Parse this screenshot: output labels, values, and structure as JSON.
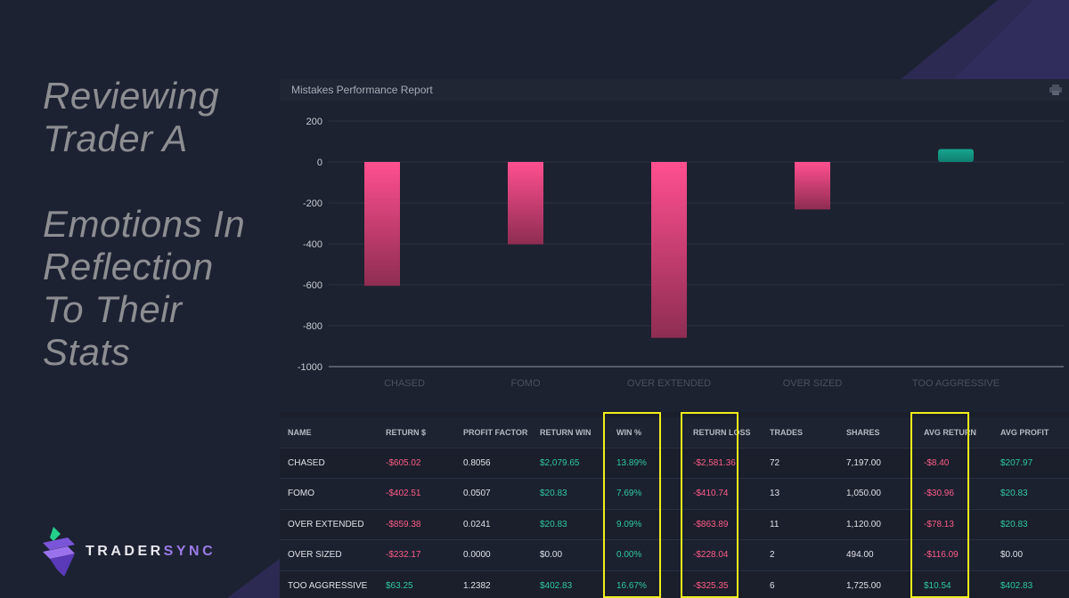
{
  "headline": {
    "lines_1": [
      "Reviewing",
      "Trader A"
    ],
    "lines_2": [
      "Emotions In",
      "Reflection",
      "To Their",
      "Stats"
    ]
  },
  "logo": {
    "text_main": "TRADER",
    "text_accent": "SYNC"
  },
  "panel": {
    "title": "Mistakes Performance Report",
    "print_icon": "printer-icon"
  },
  "colors": {
    "negative": "#ff5c87",
    "positive": "#2fc9a0",
    "bar_neg_top": "#ff4f90",
    "bar_neg_bottom": "#8e2d52",
    "bar_pos": "#17a58f",
    "highlight": "#f1ee1c",
    "accent": "#9b7be6"
  },
  "chart_data": {
    "type": "bar",
    "categories": [
      "CHASED",
      "FOMO",
      "OVER EXTENDED",
      "OVER SIZED",
      "TOO AGGRESSIVE"
    ],
    "values": [
      -605.02,
      -402.51,
      -859.38,
      -232.17,
      63.25
    ],
    "ylim": [
      -1000,
      200
    ],
    "yticks": [
      200,
      0,
      -200,
      -400,
      -600,
      -800,
      -1000
    ],
    "grid": true
  },
  "table": {
    "columns": [
      "NAME",
      "RETURN $",
      "PROFIT FACTOR",
      "RETURN WIN",
      "WIN %",
      "RETURN LOSS",
      "TRADES",
      "SHARES",
      "AVG RETURN",
      "AVG PROFIT"
    ],
    "rows": [
      [
        "CHASED",
        "-$605.02",
        "0.8056",
        "$2,079.65",
        "13.89%",
        "-$2,581.36",
        "72",
        "7,197.00",
        "-$8.40",
        "$207.97"
      ],
      [
        "FOMO",
        "-$402.51",
        "0.0507",
        "$20.83",
        "7.69%",
        "-$410.74",
        "13",
        "1,050.00",
        "-$30.96",
        "$20.83"
      ],
      [
        "OVER EXTENDED",
        "-$859.38",
        "0.0241",
        "$20.83",
        "9.09%",
        "-$863.89",
        "11",
        "1,120.00",
        "-$78.13",
        "$20.83"
      ],
      [
        "OVER SIZED",
        "-$232.17",
        "0.0000",
        "$0.00",
        "0.00%",
        "-$228.04",
        "2",
        "494.00",
        "-$116.09",
        "$0.00"
      ],
      [
        "TOO AGGRESSIVE",
        "$63.25",
        "1.2382",
        "$402.83",
        "16.67%",
        "-$325.35",
        "6",
        "1,725.00",
        "$10.54",
        "$402.83"
      ]
    ],
    "highlighted_columns": [
      "WIN %",
      "RETURN LOSS",
      "AVG RETURN"
    ]
  }
}
